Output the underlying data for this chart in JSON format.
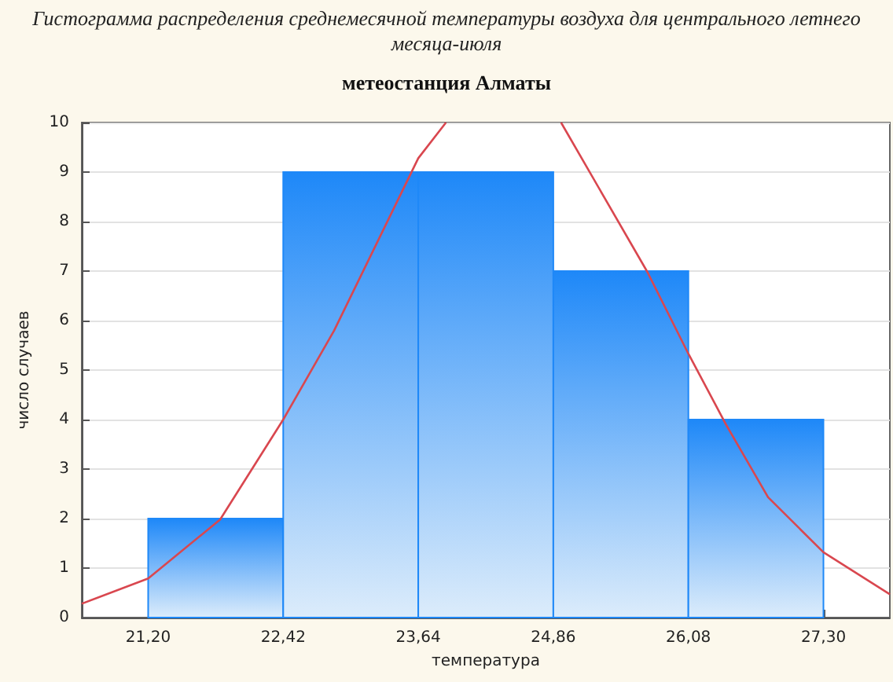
{
  "chart_data": {
    "type": "histogram",
    "title": "Гистограмма распределения среднемесячной температуры воздуха для центрального летнего месяца-июля",
    "subtitle": "метеостанция Алматы",
    "xlabel": "температура",
    "ylabel": "число случаев",
    "bins": [
      21.2,
      22.42,
      23.64,
      24.86,
      26.08,
      27.3
    ],
    "series": [
      {
        "type": "histogram",
        "color": "#1e88f8",
        "values": [
          2,
          9,
          9,
          7,
          4
        ]
      },
      {
        "type": "line",
        "color": "#d9474f",
        "marker": "none",
        "x": [
          20.6,
          21.2,
          21.85,
          22.42,
          22.88,
          23.64,
          23.89,
          24.4,
          24.93,
          25.71,
          26.08,
          26.42,
          26.8,
          27.3,
          27.9
        ],
        "values": [
          0.28,
          0.79,
          1.98,
          4.0,
          5.8,
          9.28,
          10,
          null,
          10,
          6.98,
          5.33,
          3.9,
          2.43,
          1.32,
          0.47
        ]
      }
    ],
    "xlim": [
      20.6,
      27.9
    ],
    "xticks": [
      {
        "value": 21.2,
        "label": "21,20"
      },
      {
        "value": 22.42,
        "label": "22,42"
      },
      {
        "value": 23.64,
        "label": "23,64"
      },
      {
        "value": 24.86,
        "label": "24,86"
      },
      {
        "value": 26.08,
        "label": "26,08"
      },
      {
        "value": 27.3,
        "label": "27,30"
      }
    ],
    "ylim": [
      0,
      10
    ],
    "yticks": [
      0,
      1,
      2,
      3,
      4,
      5,
      6,
      7,
      8,
      9,
      10
    ],
    "grid": "y"
  }
}
